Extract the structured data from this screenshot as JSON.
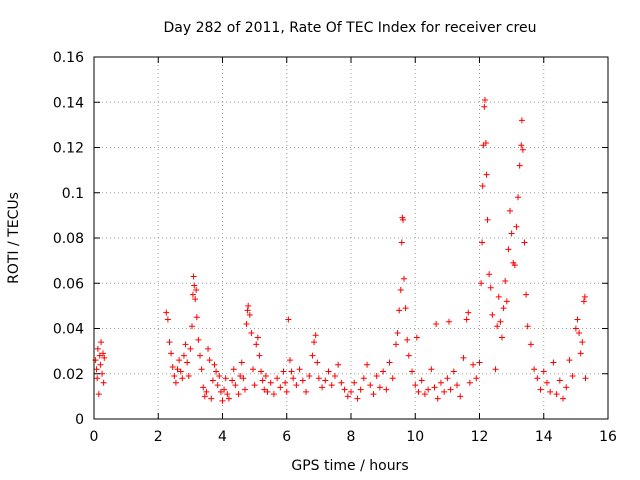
{
  "chart_data": {
    "type": "scatter",
    "title": "Day 282 of 2011, Rate Of TEC Index for receiver creu",
    "xlabel": "GPS time / hours",
    "ylabel": "ROTI / TECUs",
    "xlim": [
      0,
      16
    ],
    "ylim": [
      0,
      0.16
    ],
    "x_ticks": [
      0,
      2,
      4,
      6,
      8,
      10,
      12,
      14,
      16
    ],
    "x_tick_labels": [
      "0",
      "2",
      "4",
      "6",
      "8",
      "10",
      "12",
      "14",
      "16"
    ],
    "y_ticks": [
      0,
      0.02,
      0.04,
      0.06,
      0.08,
      0.1,
      0.12,
      0.14,
      0.16
    ],
    "y_tick_labels": [
      "0",
      "0.02",
      "0.04",
      "0.06",
      "0.08",
      "0.1",
      "0.12",
      "0.14",
      "0.16"
    ],
    "grid": true,
    "marker": "plus",
    "color": "#ff0000",
    "series": [
      {
        "points": [
          [
            0.05,
            0.026
          ],
          [
            0.08,
            0.022
          ],
          [
            0.1,
            0.018
          ],
          [
            0.12,
            0.031
          ],
          [
            0.15,
            0.011
          ],
          [
            0.18,
            0.028
          ],
          [
            0.2,
            0.024
          ],
          [
            0.22,
            0.034
          ],
          [
            0.25,
            0.02
          ],
          [
            0.28,
            0.029
          ],
          [
            0.3,
            0.016
          ],
          [
            0.32,
            0.027
          ],
          [
            2.25,
            0.047
          ],
          [
            2.3,
            0.044
          ],
          [
            2.35,
            0.034
          ],
          [
            2.4,
            0.029
          ],
          [
            2.45,
            0.023
          ],
          [
            2.5,
            0.019
          ],
          [
            2.55,
            0.016
          ],
          [
            2.6,
            0.022
          ],
          [
            2.65,
            0.026
          ],
          [
            2.7,
            0.021
          ],
          [
            2.75,
            0.018
          ],
          [
            2.8,
            0.028
          ],
          [
            2.85,
            0.033
          ],
          [
            2.9,
            0.025
          ],
          [
            2.95,
            0.019
          ],
          [
            3.0,
            0.031
          ],
          [
            3.05,
            0.041
          ],
          [
            3.08,
            0.055
          ],
          [
            3.1,
            0.063
          ],
          [
            3.12,
            0.059
          ],
          [
            3.15,
            0.053
          ],
          [
            3.18,
            0.057
          ],
          [
            3.2,
            0.045
          ],
          [
            3.25,
            0.035
          ],
          [
            3.3,
            0.028
          ],
          [
            3.35,
            0.022
          ],
          [
            3.4,
            0.014
          ],
          [
            3.45,
            0.01
          ],
          [
            3.5,
            0.012
          ],
          [
            3.55,
            0.031
          ],
          [
            3.6,
            0.026
          ],
          [
            3.65,
            0.009
          ],
          [
            3.7,
            0.017
          ],
          [
            3.75,
            0.024
          ],
          [
            3.8,
            0.021
          ],
          [
            3.85,
            0.015
          ],
          [
            3.9,
            0.019
          ],
          [
            3.95,
            0.012
          ],
          [
            4.0,
            0.008
          ],
          [
            4.05,
            0.013
          ],
          [
            4.1,
            0.018
          ],
          [
            4.15,
            0.011
          ],
          [
            4.2,
            0.009
          ],
          [
            4.3,
            0.017
          ],
          [
            4.35,
            0.022
          ],
          [
            4.4,
            0.015
          ],
          [
            4.5,
            0.011
          ],
          [
            4.55,
            0.019
          ],
          [
            4.6,
            0.025
          ],
          [
            4.65,
            0.018
          ],
          [
            4.7,
            0.013
          ],
          [
            4.75,
            0.042
          ],
          [
            4.78,
            0.048
          ],
          [
            4.8,
            0.05
          ],
          [
            4.85,
            0.046
          ],
          [
            4.9,
            0.038
          ],
          [
            4.95,
            0.022
          ],
          [
            5.0,
            0.015
          ],
          [
            5.05,
            0.033
          ],
          [
            5.1,
            0.036
          ],
          [
            5.15,
            0.028
          ],
          [
            5.2,
            0.021
          ],
          [
            5.25,
            0.017
          ],
          [
            5.3,
            0.013
          ],
          [
            5.35,
            0.019
          ],
          [
            5.4,
            0.012
          ],
          [
            5.5,
            0.016
          ],
          [
            5.6,
            0.011
          ],
          [
            5.7,
            0.018
          ],
          [
            5.8,
            0.014
          ],
          [
            5.9,
            0.021
          ],
          [
            5.95,
            0.016
          ],
          [
            6.0,
            0.012
          ],
          [
            6.05,
            0.044
          ],
          [
            6.1,
            0.026
          ],
          [
            6.15,
            0.021
          ],
          [
            6.2,
            0.018
          ],
          [
            6.3,
            0.015
          ],
          [
            6.4,
            0.022
          ],
          [
            6.5,
            0.017
          ],
          [
            6.6,
            0.012
          ],
          [
            6.7,
            0.019
          ],
          [
            6.8,
            0.028
          ],
          [
            6.85,
            0.034
          ],
          [
            6.9,
            0.037
          ],
          [
            6.95,
            0.025
          ],
          [
            7.0,
            0.018
          ],
          [
            7.1,
            0.014
          ],
          [
            7.2,
            0.017
          ],
          [
            7.3,
            0.021
          ],
          [
            7.4,
            0.015
          ],
          [
            7.5,
            0.019
          ],
          [
            7.6,
            0.024
          ],
          [
            7.7,
            0.016
          ],
          [
            7.8,
            0.013
          ],
          [
            7.9,
            0.01
          ],
          [
            8.0,
            0.012
          ],
          [
            8.1,
            0.016
          ],
          [
            8.2,
            0.009
          ],
          [
            8.3,
            0.013
          ],
          [
            8.4,
            0.018
          ],
          [
            8.5,
            0.024
          ],
          [
            8.6,
            0.015
          ],
          [
            8.7,
            0.011
          ],
          [
            8.8,
            0.019
          ],
          [
            8.9,
            0.014
          ],
          [
            9.0,
            0.021
          ],
          [
            9.1,
            0.013
          ],
          [
            9.2,
            0.025
          ],
          [
            9.3,
            0.018
          ],
          [
            9.4,
            0.033
          ],
          [
            9.45,
            0.038
          ],
          [
            9.5,
            0.048
          ],
          [
            9.55,
            0.057
          ],
          [
            9.58,
            0.078
          ],
          [
            9.6,
            0.089
          ],
          [
            9.62,
            0.088
          ],
          [
            9.65,
            0.062
          ],
          [
            9.7,
            0.049
          ],
          [
            9.75,
            0.035
          ],
          [
            9.8,
            0.028
          ],
          [
            9.9,
            0.021
          ],
          [
            10.0,
            0.015
          ],
          [
            10.05,
            0.036
          ],
          [
            10.1,
            0.012
          ],
          [
            10.2,
            0.017
          ],
          [
            10.3,
            0.011
          ],
          [
            10.4,
            0.013
          ],
          [
            10.5,
            0.022
          ],
          [
            10.6,
            0.014
          ],
          [
            10.65,
            0.042
          ],
          [
            10.7,
            0.009
          ],
          [
            10.8,
            0.016
          ],
          [
            10.9,
            0.012
          ],
          [
            11.0,
            0.018
          ],
          [
            11.05,
            0.043
          ],
          [
            11.1,
            0.013
          ],
          [
            11.2,
            0.021
          ],
          [
            11.3,
            0.015
          ],
          [
            11.4,
            0.01
          ],
          [
            11.5,
            0.027
          ],
          [
            11.6,
            0.044
          ],
          [
            11.65,
            0.047
          ],
          [
            11.7,
            0.016
          ],
          [
            11.8,
            0.024
          ],
          [
            11.9,
            0.018
          ],
          [
            12.0,
            0.025
          ],
          [
            12.05,
            0.06
          ],
          [
            12.08,
            0.078
          ],
          [
            12.1,
            0.103
          ],
          [
            12.12,
            0.121
          ],
          [
            12.15,
            0.138
          ],
          [
            12.17,
            0.141
          ],
          [
            12.2,
            0.122
          ],
          [
            12.22,
            0.108
          ],
          [
            12.25,
            0.088
          ],
          [
            12.3,
            0.064
          ],
          [
            12.35,
            0.058
          ],
          [
            12.4,
            0.046
          ],
          [
            12.5,
            0.022
          ],
          [
            12.55,
            0.041
          ],
          [
            12.6,
            0.054
          ],
          [
            12.65,
            0.043
          ],
          [
            12.7,
            0.036
          ],
          [
            12.75,
            0.049
          ],
          [
            12.8,
            0.061
          ],
          [
            12.85,
            0.052
          ],
          [
            12.9,
            0.075
          ],
          [
            12.95,
            0.092
          ],
          [
            13.0,
            0.082
          ],
          [
            13.05,
            0.069
          ],
          [
            13.1,
            0.068
          ],
          [
            13.15,
            0.085
          ],
          [
            13.2,
            0.098
          ],
          [
            13.25,
            0.112
          ],
          [
            13.3,
            0.121
          ],
          [
            13.32,
            0.132
          ],
          [
            13.35,
            0.119
          ],
          [
            13.4,
            0.078
          ],
          [
            13.45,
            0.055
          ],
          [
            13.5,
            0.041
          ],
          [
            13.6,
            0.033
          ],
          [
            13.7,
            0.022
          ],
          [
            13.8,
            0.018
          ],
          [
            13.9,
            0.013
          ],
          [
            14.0,
            0.021
          ],
          [
            14.1,
            0.016
          ],
          [
            14.2,
            0.012
          ],
          [
            14.3,
            0.025
          ],
          [
            14.4,
            0.011
          ],
          [
            14.5,
            0.017
          ],
          [
            14.6,
            0.009
          ],
          [
            14.7,
            0.014
          ],
          [
            14.8,
            0.026
          ],
          [
            14.9,
            0.019
          ],
          [
            15.0,
            0.04
          ],
          [
            15.05,
            0.044
          ],
          [
            15.1,
            0.038
          ],
          [
            15.15,
            0.029
          ],
          [
            15.2,
            0.034
          ],
          [
            15.25,
            0.052
          ],
          [
            15.28,
            0.054
          ],
          [
            15.3,
            0.018
          ]
        ]
      }
    ]
  }
}
